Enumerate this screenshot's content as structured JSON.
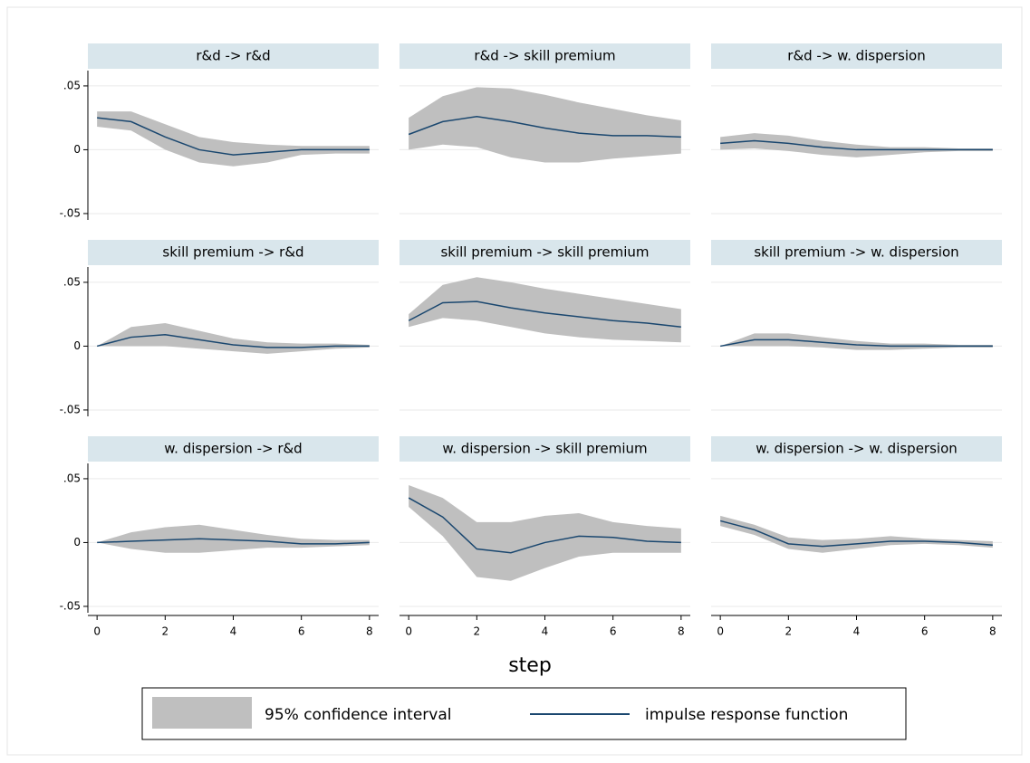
{
  "figure": {
    "xlabel": "step"
  },
  "chart_data": [
    {
      "type": "line",
      "title": "r&d -> r&d",
      "x": [
        0,
        1,
        2,
        3,
        4,
        5,
        6,
        7,
        8
      ],
      "xlim": [
        -0.27,
        8.27
      ],
      "ylim": [
        -0.055,
        0.062
      ],
      "yticks": [
        {
          "value": 0.05,
          "label": ".05"
        },
        0,
        {
          "value": -0.05,
          "label": "-.05"
        }
      ],
      "grid": true,
      "series": [
        {
          "name": "95% confidence interval",
          "color": "#bfbfbf",
          "upper": [
            0.03,
            0.03,
            0.02,
            0.01,
            0.006,
            0.004,
            0.003,
            0.003,
            0.003
          ],
          "lower": [
            0.018,
            0.015,
            0.0,
            -0.01,
            -0.013,
            -0.01,
            -0.004,
            -0.003,
            -0.003
          ]
        },
        {
          "name": "impulse response function",
          "color": "#1a476f",
          "values": [
            0.025,
            0.022,
            0.01,
            0.0,
            -0.004,
            -0.002,
            0.0,
            0.0,
            0.0
          ]
        }
      ]
    },
    {
      "type": "line",
      "title": "r&d -> skill premium",
      "x": [
        0,
        1,
        2,
        3,
        4,
        5,
        6,
        7,
        8
      ],
      "xlim": [
        -0.27,
        8.27
      ],
      "ylim": [
        -0.055,
        0.062
      ],
      "yticks": [
        {
          "value": 0.05,
          "label": ".05"
        },
        0,
        {
          "value": -0.05,
          "label": "-.05"
        }
      ],
      "grid": true,
      "series": [
        {
          "name": "95% confidence interval",
          "color": "#bfbfbf",
          "upper": [
            0.025,
            0.042,
            0.049,
            0.048,
            0.043,
            0.037,
            0.032,
            0.027,
            0.023
          ],
          "lower": [
            0,
            0.004,
            0.002,
            -0.006,
            -0.01,
            -0.01,
            -0.007,
            -0.005,
            -0.003
          ]
        },
        {
          "name": "impulse response function",
          "color": "#1a476f",
          "values": [
            0.012,
            0.022,
            0.026,
            0.022,
            0.017,
            0.013,
            0.011,
            0.011,
            0.01
          ]
        }
      ]
    },
    {
      "type": "line",
      "title": "r&d -> w. dispersion",
      "x": [
        0,
        1,
        2,
        3,
        4,
        5,
        6,
        7,
        8
      ],
      "xlim": [
        -0.27,
        8.27
      ],
      "ylim": [
        -0.055,
        0.062
      ],
      "yticks": [
        {
          "value": 0.05,
          "label": ".05"
        },
        0,
        {
          "value": -0.05,
          "label": "-.05"
        }
      ],
      "grid": true,
      "series": [
        {
          "name": "95% confidence interval",
          "color": "#bfbfbf",
          "upper": [
            0.01,
            0.013,
            0.011,
            0.007,
            0.004,
            0.002,
            0.002,
            0.001,
            0.001
          ],
          "lower": [
            0,
            0.001,
            -0.001,
            -0.004,
            -0.006,
            -0.004,
            -0.002,
            -0.001,
            -0.001
          ]
        },
        {
          "name": "impulse response function",
          "color": "#1a476f",
          "values": [
            0.005,
            0.007,
            0.005,
            0.002,
            0,
            0,
            0,
            0,
            0
          ]
        }
      ]
    },
    {
      "type": "line",
      "title": "skill premium -> r&d",
      "x": [
        0,
        1,
        2,
        3,
        4,
        5,
        6,
        7,
        8
      ],
      "xlim": [
        -0.27,
        8.27
      ],
      "ylim": [
        -0.055,
        0.062
      ],
      "yticks": [
        {
          "value": 0.05,
          "label": ".05"
        },
        0,
        {
          "value": -0.05,
          "label": "-.05"
        }
      ],
      "grid": true,
      "series": [
        {
          "name": "95% confidence interval",
          "color": "#bfbfbf",
          "upper": [
            0,
            0.015,
            0.018,
            0.012,
            0.006,
            0.003,
            0.002,
            0.002,
            0.001
          ],
          "lower": [
            0,
            0,
            0,
            -0.002,
            -0.004,
            -0.006,
            -0.004,
            -0.002,
            -0.001
          ]
        },
        {
          "name": "impulse response function",
          "color": "#1a476f",
          "values": [
            0,
            0.007,
            0.009,
            0.005,
            0.001,
            -0.001,
            -0.001,
            0,
            0
          ]
        }
      ]
    },
    {
      "type": "line",
      "title": "skill premium -> skill premium",
      "x": [
        0,
        1,
        2,
        3,
        4,
        5,
        6,
        7,
        8
      ],
      "xlim": [
        -0.27,
        8.27
      ],
      "ylim": [
        -0.055,
        0.062
      ],
      "yticks": [
        {
          "value": 0.05,
          "label": ".05"
        },
        0,
        {
          "value": -0.05,
          "label": "-.05"
        }
      ],
      "grid": true,
      "series": [
        {
          "name": "95% confidence interval",
          "color": "#bfbfbf",
          "upper": [
            0.025,
            0.048,
            0.054,
            0.05,
            0.045,
            0.041,
            0.037,
            0.033,
            0.029
          ],
          "lower": [
            0.015,
            0.022,
            0.02,
            0.015,
            0.01,
            0.007,
            0.005,
            0.004,
            0.003
          ]
        },
        {
          "name": "impulse response function",
          "color": "#1a476f",
          "values": [
            0.02,
            0.034,
            0.035,
            0.03,
            0.026,
            0.023,
            0.02,
            0.018,
            0.015
          ]
        }
      ]
    },
    {
      "type": "line",
      "title": "skill premium -> w. dispersion",
      "x": [
        0,
        1,
        2,
        3,
        4,
        5,
        6,
        7,
        8
      ],
      "xlim": [
        -0.27,
        8.27
      ],
      "ylim": [
        -0.055,
        0.062
      ],
      "yticks": [
        {
          "value": 0.05,
          "label": ".05"
        },
        0,
        {
          "value": -0.05,
          "label": "-.05"
        }
      ],
      "grid": true,
      "series": [
        {
          "name": "95% confidence interval",
          "color": "#bfbfbf",
          "upper": [
            0,
            0.01,
            0.01,
            0.007,
            0.004,
            0.002,
            0.002,
            0.001,
            0.001
          ],
          "lower": [
            0,
            0,
            0,
            -0.001,
            -0.003,
            -0.003,
            -0.002,
            -0.001,
            -0.001
          ]
        },
        {
          "name": "impulse response function",
          "color": "#1a476f",
          "values": [
            0,
            0.005,
            0.005,
            0.003,
            0.001,
            0,
            0,
            0,
            0
          ]
        }
      ]
    },
    {
      "type": "line",
      "title": "w. dispersion -> r&d",
      "x": [
        0,
        1,
        2,
        3,
        4,
        5,
        6,
        7,
        8
      ],
      "xlim": [
        -0.27,
        8.27
      ],
      "xticks": [
        0,
        2,
        4,
        6,
        8
      ],
      "ylim": [
        -0.055,
        0.062
      ],
      "yticks": [
        {
          "value": 0.05,
          "label": ".05"
        },
        0,
        {
          "value": -0.05,
          "label": "-.05"
        }
      ],
      "grid": true,
      "series": [
        {
          "name": "95% confidence interval",
          "color": "#bfbfbf",
          "upper": [
            0,
            0.008,
            0.012,
            0.014,
            0.01,
            0.006,
            0.003,
            0.002,
            0.002
          ],
          "lower": [
            0,
            -0.005,
            -0.008,
            -0.008,
            -0.006,
            -0.004,
            -0.004,
            -0.003,
            -0.002
          ]
        },
        {
          "name": "impulse response function",
          "color": "#1a476f",
          "values": [
            0,
            0.001,
            0.002,
            0.003,
            0.002,
            0.001,
            -0.001,
            -0.001,
            0
          ]
        }
      ]
    },
    {
      "type": "line",
      "title": "w. dispersion -> skill premium",
      "x": [
        0,
        1,
        2,
        3,
        4,
        5,
        6,
        7,
        8
      ],
      "xlim": [
        -0.27,
        8.27
      ],
      "xticks": [
        0,
        2,
        4,
        6,
        8
      ],
      "ylim": [
        -0.055,
        0.062
      ],
      "yticks": [
        {
          "value": 0.05,
          "label": ".05"
        },
        0,
        {
          "value": -0.05,
          "label": "-.05"
        }
      ],
      "grid": true,
      "series": [
        {
          "name": "95% confidence interval",
          "color": "#bfbfbf",
          "upper": [
            0.045,
            0.035,
            0.016,
            0.016,
            0.021,
            0.023,
            0.016,
            0.013,
            0.011
          ],
          "lower": [
            0.028,
            0.005,
            -0.027,
            -0.03,
            -0.02,
            -0.011,
            -0.008,
            -0.008,
            -0.008
          ]
        },
        {
          "name": "impulse response function",
          "color": "#1a476f",
          "values": [
            0.035,
            0.02,
            -0.005,
            -0.008,
            0,
            0.005,
            0.004,
            0.001,
            0
          ]
        }
      ]
    },
    {
      "type": "line",
      "title": "w. dispersion -> w. dispersion",
      "x": [
        0,
        1,
        2,
        3,
        4,
        5,
        6,
        7,
        8
      ],
      "xlim": [
        -0.27,
        8.27
      ],
      "xticks": [
        0,
        2,
        4,
        6,
        8
      ],
      "ylim": [
        -0.055,
        0.062
      ],
      "yticks": [
        {
          "value": 0.05,
          "label": ".05"
        },
        0,
        {
          "value": -0.05,
          "label": "-.05"
        }
      ],
      "grid": true,
      "series": [
        {
          "name": "95% confidence interval",
          "color": "#bfbfbf",
          "upper": [
            0.021,
            0.014,
            0.004,
            0.002,
            0.003,
            0.005,
            0.003,
            0.002,
            0.001
          ],
          "lower": [
            0.013,
            0.006,
            -0.005,
            -0.008,
            -0.005,
            -0.002,
            -0.001,
            -0.002,
            -0.004
          ]
        },
        {
          "name": "impulse response function",
          "color": "#1a476f",
          "values": [
            0.017,
            0.01,
            -0.001,
            -0.003,
            -0.001,
            0.001,
            0.001,
            0,
            -0.002
          ]
        }
      ]
    }
  ]
}
